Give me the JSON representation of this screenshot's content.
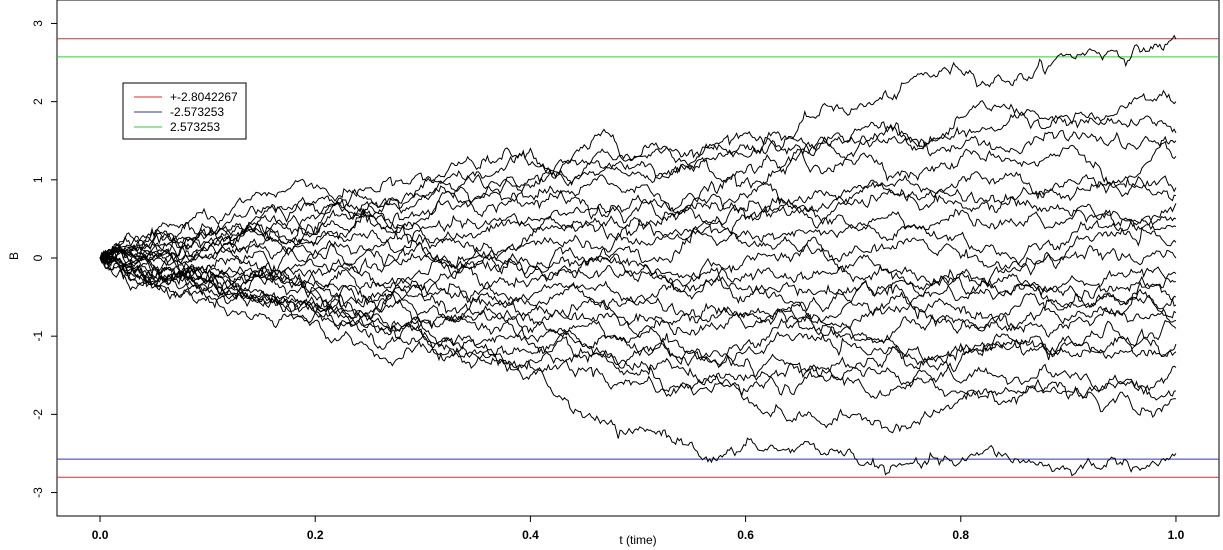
{
  "chart_data": {
    "type": "line",
    "title": "",
    "xlabel": "t (time)",
    "ylabel": "B",
    "xlim": [
      -0.04,
      1.04
    ],
    "ylim": [
      -3.3,
      3.3
    ],
    "x_ticks": [
      0.0,
      0.2,
      0.4,
      0.6,
      0.8,
      1.0
    ],
    "x_tick_labels": [
      "0.0",
      "0.2",
      "0.4",
      "0.6",
      "0.8",
      "1.0"
    ],
    "y_ticks": [
      -3,
      -2,
      -1,
      0,
      1,
      2,
      3
    ],
    "y_tick_labels": [
      "-3",
      "-2",
      "-1",
      "0",
      "1",
      "2",
      "3"
    ],
    "grid": false,
    "legend_position": "top-left",
    "legend": [
      {
        "label": "+-2.8042267",
        "color": "#cc3333"
      },
      {
        "label": "-2.573253",
        "color": "#3333aa"
      },
      {
        "label": "2.573253",
        "color": "#33cc33"
      }
    ],
    "hlines": [
      {
        "y": 2.8042267,
        "color": "#cc3333"
      },
      {
        "y": -2.8042267,
        "color": "#cc3333"
      },
      {
        "y": -2.573253,
        "color": "#3333aa"
      },
      {
        "y": 2.573253,
        "color": "#33cc33"
      }
    ],
    "path_color": "#000000",
    "path_x": [
      0.0,
      0.1,
      0.2,
      0.3,
      0.4,
      0.5,
      0.6,
      0.7,
      0.8,
      0.9,
      1.0
    ],
    "series": [
      {
        "values": [
          0,
          0.3,
          0.5,
          0.8,
          1.0,
          1.3,
          1.6,
          1.9,
          2.4,
          2.6,
          2.8
        ]
      },
      {
        "values": [
          0,
          0.5,
          0.9,
          0.8,
          1.2,
          1.3,
          1.4,
          1.6,
          1.8,
          1.8,
          2.0
        ]
      },
      {
        "values": [
          0,
          0.3,
          0.6,
          0.9,
          1.4,
          1.1,
          1.3,
          1.5,
          1.6,
          1.7,
          1.6
        ]
      },
      {
        "values": [
          0,
          0.4,
          0.7,
          1.0,
          0.9,
          1.2,
          1.0,
          1.3,
          1.4,
          1.5,
          1.5
        ]
      },
      {
        "values": [
          0,
          0.2,
          0.4,
          0.6,
          0.8,
          0.9,
          1.1,
          1.2,
          1.3,
          1.4,
          1.3
        ]
      },
      {
        "values": [
          0,
          0.2,
          0.3,
          0.5,
          0.7,
          0.8,
          0.8,
          0.9,
          1.0,
          1.0,
          0.9
        ]
      },
      {
        "values": [
          0,
          0.1,
          0.3,
          0.2,
          0.5,
          0.6,
          0.5,
          0.7,
          0.8,
          0.8,
          0.8
        ]
      },
      {
        "values": [
          0,
          0.3,
          0.2,
          0.4,
          0.4,
          0.5,
          0.6,
          0.8,
          0.7,
          0.6,
          0.7
        ]
      },
      {
        "values": [
          0,
          0.0,
          0.2,
          0.3,
          0.2,
          0.4,
          0.5,
          0.4,
          0.6,
          0.5,
          0.5
        ]
      },
      {
        "values": [
          0,
          0.1,
          0.0,
          0.1,
          0.3,
          0.2,
          0.3,
          0.4,
          0.3,
          0.2,
          0.4
        ]
      },
      {
        "values": [
          0,
          -0.1,
          0.1,
          0.0,
          -0.1,
          0.1,
          0.2,
          0.1,
          0.0,
          0.1,
          0.2
        ]
      },
      {
        "values": [
          0,
          -0.2,
          -0.1,
          0.1,
          -0.2,
          -0.1,
          0.0,
          -0.1,
          -0.2,
          0.0,
          0.0
        ]
      },
      {
        "values": [
          0,
          0.0,
          -0.3,
          -0.2,
          -0.1,
          -0.3,
          -0.2,
          -0.3,
          -0.2,
          -0.3,
          -0.2
        ]
      },
      {
        "values": [
          0,
          -0.2,
          -0.3,
          -0.4,
          -0.3,
          -0.2,
          -0.4,
          -0.5,
          -0.3,
          -0.4,
          -0.3
        ]
      },
      {
        "values": [
          0,
          -0.3,
          -0.2,
          -0.4,
          -0.5,
          -0.6,
          -0.5,
          -0.4,
          -0.5,
          -0.6,
          -0.5
        ]
      },
      {
        "values": [
          0,
          -0.1,
          -0.4,
          -0.5,
          -0.6,
          -0.5,
          -0.7,
          -0.6,
          -0.7,
          -0.6,
          -0.6
        ]
      },
      {
        "values": [
          0,
          -0.4,
          -0.6,
          -0.5,
          -0.7,
          -0.8,
          -0.7,
          -0.8,
          -0.9,
          -0.8,
          -0.7
        ]
      },
      {
        "values": [
          0,
          -0.5,
          -0.7,
          -0.8,
          -0.9,
          -1.0,
          -0.9,
          -1.0,
          -0.8,
          -0.9,
          -0.8
        ]
      },
      {
        "values": [
          0,
          -0.3,
          -0.5,
          -0.9,
          -1.0,
          -1.2,
          -1.1,
          -1.0,
          -1.1,
          -1.0,
          -0.9
        ]
      },
      {
        "values": [
          0,
          -0.2,
          -0.4,
          -0.7,
          -0.8,
          -1.0,
          -1.2,
          -1.1,
          -1.2,
          -1.1,
          -1.1
        ]
      },
      {
        "values": [
          0,
          -0.4,
          -0.6,
          -0.8,
          -1.1,
          -1.2,
          -1.3,
          -1.4,
          -1.3,
          -1.2,
          -1.2
        ]
      },
      {
        "values": [
          0,
          -0.3,
          -0.7,
          -1.0,
          -1.2,
          -1.4,
          -1.5,
          -1.4,
          -1.6,
          -1.5,
          -1.4
        ]
      },
      {
        "values": [
          0,
          -0.5,
          -0.8,
          -1.1,
          -1.3,
          -1.5,
          -1.7,
          -1.6,
          -1.7,
          -1.8,
          -1.7
        ]
      },
      {
        "values": [
          0,
          -0.4,
          -0.7,
          -1.0,
          -1.4,
          -1.6,
          -1.8,
          -2.0,
          -1.8,
          -1.7,
          -1.8
        ]
      },
      {
        "values": [
          0,
          -0.3,
          -0.6,
          -1.0,
          -1.5,
          -2.2,
          -2.4,
          -2.5,
          -2.6,
          -2.7,
          -2.5
        ]
      }
    ]
  }
}
